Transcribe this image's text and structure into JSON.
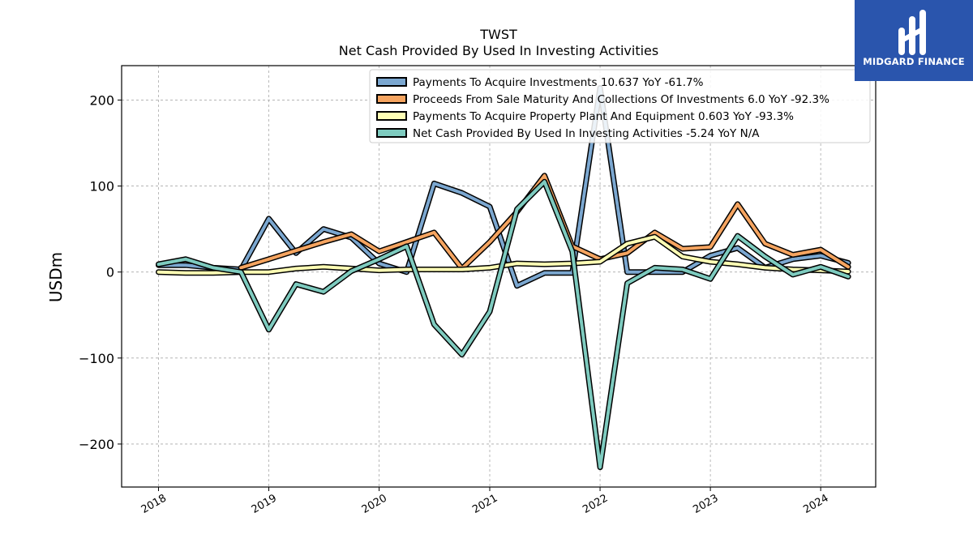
{
  "brand": {
    "name": "MIDGARD FINANCE",
    "logo_icon": "midgard-m-logo-icon",
    "bg_color": "#2a55ad"
  },
  "chart_data": {
    "type": "line",
    "title": "TWST",
    "subtitle": "Net Cash Provided By Used In Investing Activities",
    "ylabel": "USDm",
    "xlabel": "",
    "xlim": [
      "2017-09-01",
      "2024-07-01"
    ],
    "ylim": [
      -250,
      240
    ],
    "yticks": [
      {
        "value": 200,
        "label": "200"
      },
      {
        "value": 100,
        "label": "100"
      },
      {
        "value": 0,
        "label": "0"
      },
      {
        "value": -100,
        "label": "−100"
      },
      {
        "value": -200,
        "label": "−200"
      }
    ],
    "xticks": [
      {
        "value": "2018-01-01",
        "label": "2018"
      },
      {
        "value": "2019-01-01",
        "label": "2019"
      },
      {
        "value": "2020-01-01",
        "label": "2020"
      },
      {
        "value": "2021-01-01",
        "label": "2021"
      },
      {
        "value": "2022-01-01",
        "label": "2022"
      },
      {
        "value": "2023-01-01",
        "label": "2023"
      },
      {
        "value": "2024-01-01",
        "label": "2024"
      }
    ],
    "grid": true,
    "legend_position": "top-right",
    "series": [
      {
        "name": "Payments To Acquire Investments  10.637 YoY -61.7%",
        "color": "#7ba7d0",
        "points": [
          [
            "2018-01-01",
            8
          ],
          [
            "2018-04-01",
            8
          ],
          [
            "2018-07-01",
            5
          ],
          [
            "2018-10-01",
            3
          ],
          [
            "2019-01-01",
            62
          ],
          [
            "2019-04-01",
            22
          ],
          [
            "2019-07-01",
            50
          ],
          [
            "2019-10-01",
            40
          ],
          [
            "2020-01-01",
            10
          ],
          [
            "2020-04-01",
            0
          ],
          [
            "2020-07-01",
            103
          ],
          [
            "2020-10-01",
            92
          ],
          [
            "2021-01-01",
            76
          ],
          [
            "2021-04-01",
            -16
          ],
          [
            "2021-07-01",
            -1
          ],
          [
            "2021-10-01",
            -1
          ],
          [
            "2022-01-01",
            214
          ],
          [
            "2022-04-01",
            0
          ],
          [
            "2022-07-01",
            0
          ],
          [
            "2022-10-01",
            0
          ],
          [
            "2023-01-01",
            19
          ],
          [
            "2023-04-01",
            28
          ],
          [
            "2023-07-01",
            5
          ],
          [
            "2023-10-01",
            15
          ],
          [
            "2024-01-01",
            19
          ],
          [
            "2024-04-01",
            10.637
          ]
        ]
      },
      {
        "name": "Proceeds From Sale Maturity And Collections Of Investments  6.0 YoY -92.3%",
        "color": "#f5a460",
        "points": [
          [
            "2018-10-01",
            5
          ],
          [
            "2019-01-01",
            15
          ],
          [
            "2019-04-01",
            25
          ],
          [
            "2019-07-01",
            35
          ],
          [
            "2019-10-01",
            44
          ],
          [
            "2020-01-01",
            24
          ],
          [
            "2020-04-01",
            35
          ],
          [
            "2020-07-01",
            46
          ],
          [
            "2020-10-01",
            4
          ],
          [
            "2021-01-01",
            35
          ],
          [
            "2021-04-01",
            70
          ],
          [
            "2021-07-01",
            112
          ],
          [
            "2021-10-01",
            30
          ],
          [
            "2022-01-01",
            15
          ],
          [
            "2022-04-01",
            22
          ],
          [
            "2022-07-01",
            46
          ],
          [
            "2022-10-01",
            27
          ],
          [
            "2023-01-01",
            29
          ],
          [
            "2023-04-01",
            79
          ],
          [
            "2023-07-01",
            33
          ],
          [
            "2023-10-01",
            20
          ],
          [
            "2024-01-01",
            26
          ],
          [
            "2024-04-01",
            6.0
          ]
        ]
      },
      {
        "name": "Payments To Acquire Property Plant And Equipment  0.603 YoY -93.3%",
        "color": "#fdfdb4",
        "points": [
          [
            "2018-01-01",
            0
          ],
          [
            "2018-04-01",
            -1
          ],
          [
            "2018-07-01",
            -1
          ],
          [
            "2018-10-01",
            0
          ],
          [
            "2019-01-01",
            0
          ],
          [
            "2019-04-01",
            4
          ],
          [
            "2019-07-01",
            6
          ],
          [
            "2019-10-01",
            4
          ],
          [
            "2020-01-01",
            2
          ],
          [
            "2020-04-01",
            3
          ],
          [
            "2020-07-01",
            3
          ],
          [
            "2020-10-01",
            3
          ],
          [
            "2021-01-01",
            5
          ],
          [
            "2021-04-01",
            10
          ],
          [
            "2021-07-01",
            9
          ],
          [
            "2021-10-01",
            10
          ],
          [
            "2022-01-01",
            12
          ],
          [
            "2022-04-01",
            33
          ],
          [
            "2022-07-01",
            41
          ],
          [
            "2022-10-01",
            18
          ],
          [
            "2023-01-01",
            12
          ],
          [
            "2023-04-01",
            9
          ],
          [
            "2023-07-01",
            5
          ],
          [
            "2023-10-01",
            3
          ],
          [
            "2024-01-01",
            2
          ],
          [
            "2024-04-01",
            0.603
          ]
        ]
      },
      {
        "name": "Net Cash Provided By Used In Investing Activities  -5.24 YoY N/A",
        "color": "#7ecbbf",
        "points": [
          [
            "2018-01-01",
            9
          ],
          [
            "2018-04-01",
            15
          ],
          [
            "2018-07-01",
            5
          ],
          [
            "2018-10-01",
            0
          ],
          [
            "2019-01-01",
            -67
          ],
          [
            "2019-04-01",
            -14
          ],
          [
            "2019-07-01",
            -23
          ],
          [
            "2019-10-01",
            1
          ],
          [
            "2020-01-01",
            15
          ],
          [
            "2020-04-01",
            30
          ],
          [
            "2020-07-01",
            -61
          ],
          [
            "2020-10-01",
            -96
          ],
          [
            "2021-01-01",
            -46
          ],
          [
            "2021-04-01",
            73
          ],
          [
            "2021-07-01",
            105
          ],
          [
            "2021-10-01",
            24
          ],
          [
            "2022-01-01",
            -227
          ],
          [
            "2022-04-01",
            -13
          ],
          [
            "2022-07-01",
            5
          ],
          [
            "2022-10-01",
            3
          ],
          [
            "2023-01-01",
            -8
          ],
          [
            "2023-04-01",
            42
          ],
          [
            "2023-07-01",
            18
          ],
          [
            "2023-10-01",
            -3
          ],
          [
            "2024-01-01",
            6
          ],
          [
            "2024-04-01",
            -5.24
          ]
        ]
      }
    ]
  }
}
